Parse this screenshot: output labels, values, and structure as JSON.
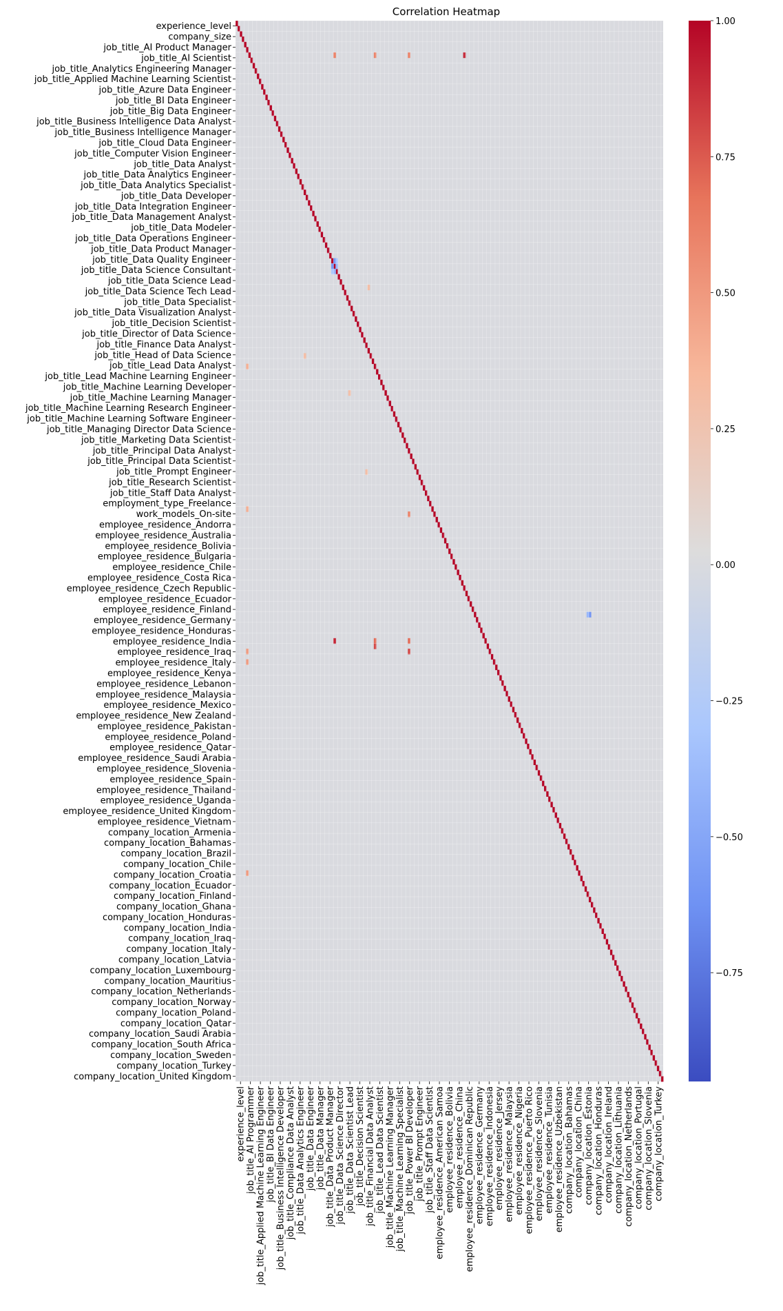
{
  "chart_data": {
    "type": "heatmap",
    "title": "Correlation Heatmap",
    "xlabel": "",
    "ylabel": "",
    "value_range": [
      -0.95,
      1.0
    ],
    "colormap": "coolwarm",
    "colormap_stops": [
      "#3b4cc0",
      "#6f92f3",
      "#aac7fd",
      "#dddcdc",
      "#f7b89c",
      "#e7745b",
      "#b40426"
    ],
    "colorbar": {
      "ticks": [
        1.0,
        0.75,
        0.5,
        0.25,
        0.0,
        -0.25,
        -0.5,
        -0.75
      ],
      "tick_labels": [
        "1.00",
        "0.75",
        "0.50",
        "0.25",
        "0.00",
        "−0.25",
        "−0.50",
        "−0.75"
      ]
    },
    "grid": true,
    "dimension": 201,
    "y_tick_labels": [
      "experience_level",
      "company_size",
      "job_title_AI Product Manager",
      "job_title_AI Scientist",
      "job_title_Analytics Engineering Manager",
      "job_title_Applied Machine Learning Scientist",
      "job_title_Azure Data Engineer",
      "job_title_BI Data Engineer",
      "job_title_Big Data Engineer",
      "job_title_Business Intelligence Data Analyst",
      "job_title_Business Intelligence Manager",
      "job_title_Cloud Data Engineer",
      "job_title_Computer Vision Engineer",
      "job_title_Data Analyst",
      "job_title_Data Analytics Engineer",
      "job_title_Data Analytics Specialist",
      "job_title_Data Developer",
      "job_title_Data Integration Engineer",
      "job_title_Data Management Analyst",
      "job_title_Data Modeler",
      "job_title_Data Operations Engineer",
      "job_title_Data Product Manager",
      "job_title_Data Quality Engineer",
      "job_title_Data Science Consultant",
      "job_title_Data Science Lead",
      "job_title_Data Science Tech Lead",
      "job_title_Data Specialist",
      "job_title_Data Visualization Analyst",
      "job_title_Decision Scientist",
      "job_title_Director of Data Science",
      "job_title_Finance Data Analyst",
      "job_title_Head of Data Science",
      "job_title_Lead Data Analyst",
      "job_title_Lead Machine Learning Engineer",
      "job_title_Machine Learning Developer",
      "job_title_Machine Learning Manager",
      "job_title_Machine Learning Research Engineer",
      "job_title_Machine Learning Software Engineer",
      "job_title_Managing Director Data Science",
      "job_title_Marketing Data Scientist",
      "job_title_Principal Data Analyst",
      "job_title_Principal Data Scientist",
      "job_title_Prompt Engineer",
      "job_title_Research Scientist",
      "job_title_Staff Data Analyst",
      "employment_type_Freelance",
      "work_models_On-site",
      "employee_residence_Andorra",
      "employee_residence_Australia",
      "employee_residence_Bolivia",
      "employee_residence_Bulgaria",
      "employee_residence_Chile",
      "employee_residence_Costa Rica",
      "employee_residence_Czech Republic",
      "employee_residence_Ecuador",
      "employee_residence_Finland",
      "employee_residence_Germany",
      "employee_residence_Honduras",
      "employee_residence_India",
      "employee_residence_Iraq",
      "employee_residence_Italy",
      "employee_residence_Kenya",
      "employee_residence_Lebanon",
      "employee_residence_Malaysia",
      "employee_residence_Mexico",
      "employee_residence_New Zealand",
      "employee_residence_Pakistan",
      "employee_residence_Poland",
      "employee_residence_Qatar",
      "employee_residence_Saudi Arabia",
      "employee_residence_Slovenia",
      "employee_residence_Spain",
      "employee_residence_Thailand",
      "employee_residence_Uganda",
      "employee_residence_United Kingdom",
      "employee_residence_Vietnam",
      "company_location_Armenia",
      "company_location_Bahamas",
      "company_location_Brazil",
      "company_location_Chile",
      "company_location_Croatia",
      "company_location_Ecuador",
      "company_location_Finland",
      "company_location_Ghana",
      "company_location_Honduras",
      "company_location_India",
      "company_location_Iraq",
      "company_location_Italy",
      "company_location_Latvia",
      "company_location_Luxembourg",
      "company_location_Mauritius",
      "company_location_Netherlands",
      "company_location_Norway",
      "company_location_Poland",
      "company_location_Qatar",
      "company_location_Saudi Arabia",
      "company_location_South Africa",
      "company_location_Sweden",
      "company_location_Turkey",
      "company_location_United Kingdom"
    ],
    "x_tick_labels": [
      "experience_level",
      "job_title_AI Programmer",
      "job_title_Applied Machine Learning Engineer",
      "job_title_BI Data Engineer",
      "job_title_Business Intelligence Developer",
      "job_title_Compliance Data Analyst",
      "job_title_Data Analytics Engineer",
      "job_title_Data Engineer",
      "job_title_Data Manager",
      "job_title_Data Product Manager",
      "job_title_Data Science Director",
      "job_title_Data Scientist Lead",
      "job_title_Decision Scientist",
      "job_title_Financial Data Analyst",
      "job_title_Lead Data Scientist",
      "job_title_Machine Learning Manager",
      "job_title_Machine Learning Specialist",
      "job_title_Power BI Developer",
      "job_title_Prompt Engineer",
      "job_title_Staff Data Scientist",
      "employee_residence_American Samoa",
      "employee_residence_Bolivia",
      "employee_residence_China",
      "employee_residence_Dominican Republic",
      "employee_residence_Germany",
      "employee_residence_Indonesia",
      "employee_residence_Jersey",
      "employee_residence_Malaysia",
      "employee_residence_Nigeria",
      "employee_residence_Puerto Rico",
      "employee_residence_Slovenia",
      "employee_residence_Tunisia",
      "employee_residence_Uzbekistan",
      "company_location_Bahamas",
      "company_location_China",
      "company_location_Estonia",
      "company_location_Honduras",
      "company_location_Ireland",
      "company_location_Lithuania",
      "company_location_Netherlands",
      "company_location_Portugal",
      "company_location_Slovenia",
      "company_location_Turkey"
    ],
    "annotation_row_note": "",
    "highlighted_cells": [
      {
        "row": 46,
        "col": 45,
        "value": -0.6
      },
      {
        "row": 45,
        "col": 46,
        "value": -0.6
      },
      {
        "row": 47,
        "col": 46,
        "value": -0.4
      },
      {
        "row": 46,
        "col": 47,
        "value": -0.4
      },
      {
        "row": 45,
        "col": 47,
        "value": -0.3
      },
      {
        "row": 47,
        "col": 45,
        "value": -0.3
      },
      {
        "row": 6,
        "col": 46,
        "value": 0.6
      },
      {
        "row": 6,
        "col": 65,
        "value": 0.6
      },
      {
        "row": 6,
        "col": 81,
        "value": 0.6
      },
      {
        "row": 6,
        "col": 107,
        "value": 0.9
      },
      {
        "row": 117,
        "col": 46,
        "value": 0.9
      },
      {
        "row": 117,
        "col": 65,
        "value": 0.7
      },
      {
        "row": 117,
        "col": 81,
        "value": 0.7
      },
      {
        "row": 118,
        "col": 65,
        "value": 0.8
      },
      {
        "row": 119,
        "col": 81,
        "value": 0.8
      },
      {
        "row": 121,
        "col": 5,
        "value": 0.5
      },
      {
        "row": 119,
        "col": 5,
        "value": 0.5
      },
      {
        "row": 65,
        "col": 5,
        "value": 0.4
      },
      {
        "row": 92,
        "col": 5,
        "value": 0.4
      },
      {
        "row": 161,
        "col": 5,
        "value": 0.5
      },
      {
        "row": 93,
        "col": 81,
        "value": 0.6
      },
      {
        "row": 112,
        "col": 166,
        "value": -0.6
      },
      {
        "row": 112,
        "col": 165,
        "value": -0.4
      },
      {
        "row": 63,
        "col": 32,
        "value": 0.3
      },
      {
        "row": 85,
        "col": 61,
        "value": 0.3
      },
      {
        "row": 50,
        "col": 62,
        "value": 0.3
      },
      {
        "row": 70,
        "col": 53,
        "value": 0.3
      }
    ]
  }
}
